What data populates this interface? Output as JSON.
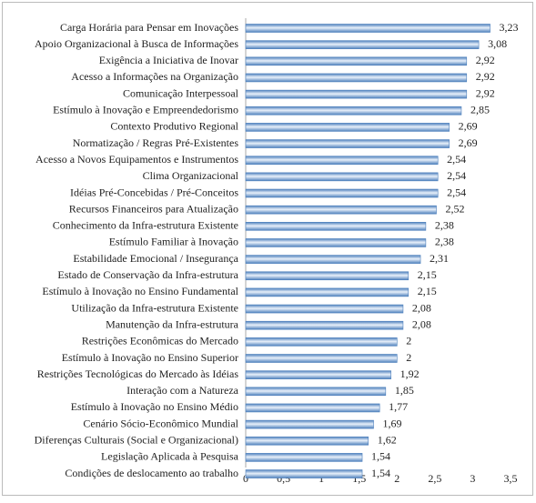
{
  "chart_data": {
    "type": "hbar",
    "categories": [
      "Carga Horária para Pensar em Inovações",
      "Apoio Organizacional à Busca de Informações",
      "Exigência a Iniciativa de Inovar",
      "Acesso a Informações na Organização",
      "Comunicação Interpessoal",
      "Estímulo à Inovação e Empreendedorismo",
      "Contexto Produtivo Regional",
      "Normatização / Regras Pré-Existentes",
      "Acesso a Novos Equipamentos e Instrumentos",
      "Clima Organizacional",
      "Idéias Pré-Concebidas / Pré-Conceitos",
      "Recursos Financeiros para Atualização",
      "Conhecimento da Infra-estrutura Existente",
      "Estímulo Familiar à Inovação",
      "Estabilidade Emocional / Insegurança",
      "Estado de Conservação da Infra-estrutura",
      "Estímulo à Inovação no Ensino Fundamental",
      "Utilização da Infra-estrutura Existente",
      "Manutenção da Infra-estrutura",
      "Restrições Econômicas do Mercado",
      "Estímulo à Inovação no Ensino Superior",
      "Restrições Tecnológicas do Mercado às Idéias",
      "Interação com a Natureza",
      "Estímulo à Inovação no Ensino Médio",
      "Cenário Sócio-Econômico Mundial",
      "Diferenças Culturais (Social e Organizacional)",
      "Legislação Aplicada à Pesquisa",
      "Condições de deslocamento ao trabalho"
    ],
    "values": [
      3.23,
      3.08,
      2.92,
      2.92,
      2.92,
      2.85,
      2.69,
      2.69,
      2.54,
      2.54,
      2.54,
      2.52,
      2.38,
      2.38,
      2.31,
      2.15,
      2.15,
      2.08,
      2.08,
      2,
      2,
      1.92,
      1.85,
      1.77,
      1.69,
      1.62,
      1.54,
      1.54
    ],
    "value_labels": [
      "3,23",
      "3,08",
      "2,92",
      "2,92",
      "2,92",
      "2,85",
      "2,69",
      "2,69",
      "2,54",
      "2,54",
      "2,54",
      "2,52",
      "2,38",
      "2,38",
      "2,31",
      "2,15",
      "2,15",
      "2,08",
      "2,08",
      "2",
      "2",
      "1,92",
      "1,85",
      "1,77",
      "1,69",
      "1,62",
      "1,54",
      "1,54"
    ],
    "color": "#4f81bd",
    "xlim": [
      0,
      3.5
    ],
    "xticks": [
      0,
      {
        "value": 0.5,
        "label": "0,5"
      },
      1,
      {
        "value": 1.5,
        "label": "1,5"
      },
      2,
      {
        "value": 2.5,
        "label": "2,5"
      },
      3,
      {
        "value": 3.5,
        "label": "3,5"
      }
    ]
  }
}
